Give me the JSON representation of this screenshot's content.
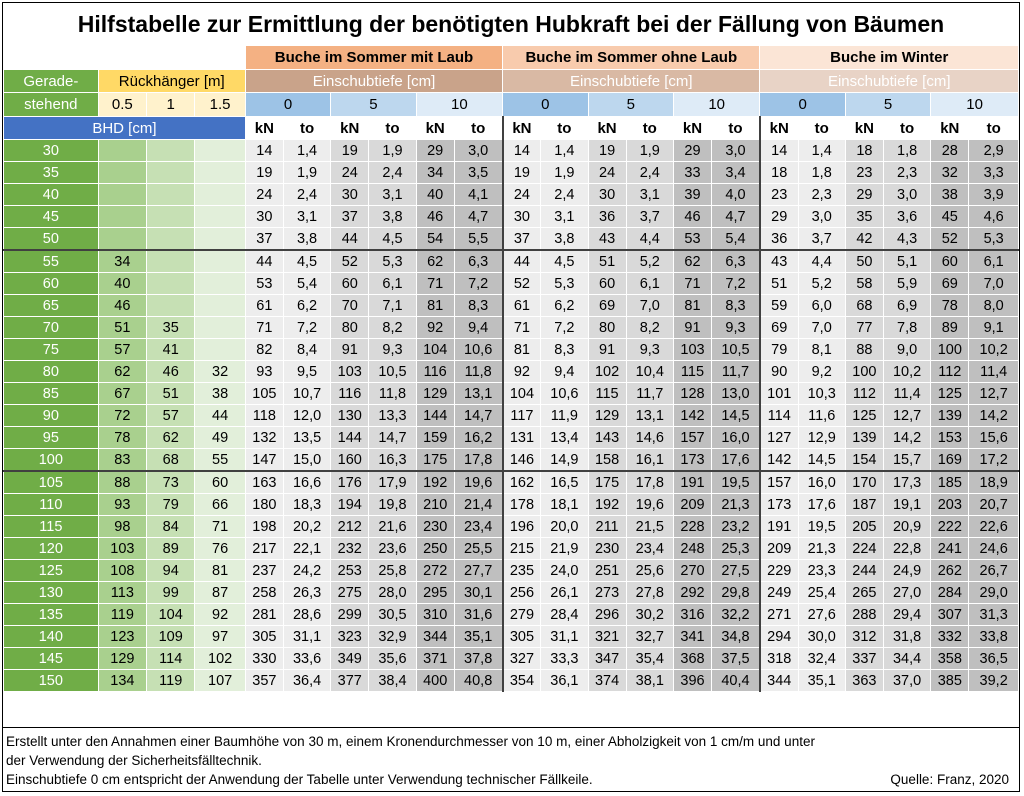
{
  "title": "Hilfstabelle zur Ermittlung der benötigten Hubkraft bei der Fällung von Bäumen",
  "groups": [
    "Buche im Sommer mit Laub",
    "Buche im Sommer ohne Laub",
    "Buche im Winter"
  ],
  "left_header": {
    "gerade_1": "Gerade-",
    "gerade_2": "stehend",
    "rueckhaenger": "Rückhänger [m]",
    "rueck_values": [
      "0.5",
      "1",
      "1.5"
    ],
    "bhd": "BHD [cm]"
  },
  "einschub_label": "Einschubtiefe [cm]",
  "einschub_values": [
    "0",
    "5",
    "10"
  ],
  "units": [
    "kN",
    "to"
  ],
  "rows": [
    [
      "30",
      "",
      "",
      "",
      "14",
      "1,4",
      "19",
      "1,9",
      "29",
      "3,0",
      "14",
      "1,4",
      "19",
      "1,9",
      "29",
      "3,0",
      "14",
      "1,4",
      "18",
      "1,8",
      "28",
      "2,9"
    ],
    [
      "35",
      "",
      "",
      "",
      "19",
      "1,9",
      "24",
      "2,4",
      "34",
      "3,5",
      "19",
      "1,9",
      "24",
      "2,4",
      "33",
      "3,4",
      "18",
      "1,8",
      "23",
      "2,3",
      "32",
      "3,3"
    ],
    [
      "40",
      "",
      "",
      "",
      "24",
      "2,4",
      "30",
      "3,1",
      "40",
      "4,1",
      "24",
      "2,4",
      "30",
      "3,1",
      "39",
      "4,0",
      "23",
      "2,3",
      "29",
      "3,0",
      "38",
      "3,9"
    ],
    [
      "45",
      "",
      "",
      "",
      "30",
      "3,1",
      "37",
      "3,8",
      "46",
      "4,7",
      "30",
      "3,1",
      "36",
      "3,7",
      "46",
      "4,7",
      "29",
      "3,0",
      "35",
      "3,6",
      "45",
      "4,6"
    ],
    [
      "50",
      "",
      "",
      "",
      "37",
      "3,8",
      "44",
      "4,5",
      "54",
      "5,5",
      "37",
      "3,8",
      "43",
      "4,4",
      "53",
      "5,4",
      "36",
      "3,7",
      "42",
      "4,3",
      "52",
      "5,3"
    ],
    [
      "55",
      "34",
      "",
      "",
      "44",
      "4,5",
      "52",
      "5,3",
      "62",
      "6,3",
      "44",
      "4,5",
      "51",
      "5,2",
      "62",
      "6,3",
      "43",
      "4,4",
      "50",
      "5,1",
      "60",
      "6,1"
    ],
    [
      "60",
      "40",
      "",
      "",
      "53",
      "5,4",
      "60",
      "6,1",
      "71",
      "7,2",
      "52",
      "5,3",
      "60",
      "6,1",
      "71",
      "7,2",
      "51",
      "5,2",
      "58",
      "5,9",
      "69",
      "7,0"
    ],
    [
      "65",
      "46",
      "",
      "",
      "61",
      "6,2",
      "70",
      "7,1",
      "81",
      "8,3",
      "61",
      "6,2",
      "69",
      "7,0",
      "81",
      "8,3",
      "59",
      "6,0",
      "68",
      "6,9",
      "78",
      "8,0"
    ],
    [
      "70",
      "51",
      "35",
      "",
      "71",
      "7,2",
      "80",
      "8,2",
      "92",
      "9,4",
      "71",
      "7,2",
      "80",
      "8,2",
      "91",
      "9,3",
      "69",
      "7,0",
      "77",
      "7,8",
      "89",
      "9,1"
    ],
    [
      "75",
      "57",
      "41",
      "",
      "82",
      "8,4",
      "91",
      "9,3",
      "104",
      "10,6",
      "81",
      "8,3",
      "91",
      "9,3",
      "103",
      "10,5",
      "79",
      "8,1",
      "88",
      "9,0",
      "100",
      "10,2"
    ],
    [
      "80",
      "62",
      "46",
      "32",
      "93",
      "9,5",
      "103",
      "10,5",
      "116",
      "11,8",
      "92",
      "9,4",
      "102",
      "10,4",
      "115",
      "11,7",
      "90",
      "9,2",
      "100",
      "10,2",
      "112",
      "11,4"
    ],
    [
      "85",
      "67",
      "51",
      "38",
      "105",
      "10,7",
      "116",
      "11,8",
      "129",
      "13,1",
      "104",
      "10,6",
      "115",
      "11,7",
      "128",
      "13,0",
      "101",
      "10,3",
      "112",
      "11,4",
      "125",
      "12,7"
    ],
    [
      "90",
      "72",
      "57",
      "44",
      "118",
      "12,0",
      "130",
      "13,3",
      "144",
      "14,7",
      "117",
      "11,9",
      "129",
      "13,1",
      "142",
      "14,5",
      "114",
      "11,6",
      "125",
      "12,7",
      "139",
      "14,2"
    ],
    [
      "95",
      "78",
      "62",
      "49",
      "132",
      "13,5",
      "144",
      "14,7",
      "159",
      "16,2",
      "131",
      "13,4",
      "143",
      "14,6",
      "157",
      "16,0",
      "127",
      "12,9",
      "139",
      "14,2",
      "153",
      "15,6"
    ],
    [
      "100",
      "83",
      "68",
      "55",
      "147",
      "15,0",
      "160",
      "16,3",
      "175",
      "17,8",
      "146",
      "14,9",
      "158",
      "16,1",
      "173",
      "17,6",
      "142",
      "14,5",
      "154",
      "15,7",
      "169",
      "17,2"
    ],
    [
      "105",
      "88",
      "73",
      "60",
      "163",
      "16,6",
      "176",
      "17,9",
      "192",
      "19,6",
      "162",
      "16,5",
      "175",
      "17,8",
      "191",
      "19,5",
      "157",
      "16,0",
      "170",
      "17,3",
      "185",
      "18,9"
    ],
    [
      "110",
      "93",
      "79",
      "66",
      "180",
      "18,3",
      "194",
      "19,8",
      "210",
      "21,4",
      "178",
      "18,1",
      "192",
      "19,6",
      "209",
      "21,3",
      "173",
      "17,6",
      "187",
      "19,1",
      "203",
      "20,7"
    ],
    [
      "115",
      "98",
      "84",
      "71",
      "198",
      "20,2",
      "212",
      "21,6",
      "230",
      "23,4",
      "196",
      "20,0",
      "211",
      "21,5",
      "228",
      "23,2",
      "191",
      "19,5",
      "205",
      "20,9",
      "222",
      "22,6"
    ],
    [
      "120",
      "103",
      "89",
      "76",
      "217",
      "22,1",
      "232",
      "23,6",
      "250",
      "25,5",
      "215",
      "21,9",
      "230",
      "23,4",
      "248",
      "25,3",
      "209",
      "21,3",
      "224",
      "22,8",
      "241",
      "24,6"
    ],
    [
      "125",
      "108",
      "94",
      "81",
      "237",
      "24,2",
      "253",
      "25,8",
      "272",
      "27,7",
      "235",
      "24,0",
      "251",
      "25,6",
      "270",
      "27,5",
      "229",
      "23,3",
      "244",
      "24,9",
      "262",
      "26,7"
    ],
    [
      "130",
      "113",
      "99",
      "87",
      "258",
      "26,3",
      "275",
      "28,0",
      "295",
      "30,1",
      "256",
      "26,1",
      "273",
      "27,8",
      "292",
      "29,8",
      "249",
      "25,4",
      "265",
      "27,0",
      "284",
      "29,0"
    ],
    [
      "135",
      "119",
      "104",
      "92",
      "281",
      "28,6",
      "299",
      "30,5",
      "310",
      "31,6",
      "279",
      "28,4",
      "296",
      "30,2",
      "316",
      "32,2",
      "271",
      "27,6",
      "288",
      "29,4",
      "307",
      "31,3"
    ],
    [
      "140",
      "123",
      "109",
      "97",
      "305",
      "31,1",
      "323",
      "32,9",
      "344",
      "35,1",
      "305",
      "31,1",
      "321",
      "32,7",
      "341",
      "34,8",
      "294",
      "30,0",
      "312",
      "31,8",
      "332",
      "33,8"
    ],
    [
      "145",
      "129",
      "114",
      "102",
      "330",
      "33,6",
      "349",
      "35,6",
      "371",
      "37,8",
      "327",
      "33,3",
      "347",
      "35,4",
      "368",
      "37,5",
      "318",
      "32,4",
      "337",
      "34,4",
      "358",
      "36,5"
    ],
    [
      "150",
      "134",
      "119",
      "107",
      "357",
      "36,4",
      "377",
      "38,4",
      "400",
      "40,8",
      "354",
      "36,1",
      "374",
      "38,1",
      "396",
      "40,4",
      "344",
      "35,1",
      "363",
      "37,0",
      "385",
      "39,2"
    ]
  ],
  "footer": {
    "line1": "Erstellt unter den Annahmen einer Baumhöhe von 30 m, einem Kronendurchmesser von 10 m, einer Abholzigkeit von 1 cm/m und unter",
    "line2": "der Verwendung der Sicherheitsfälltechnik.",
    "line3": "Einschubtiefe 0 cm entspricht der Anwendung der Tabelle unter Verwendung technischer Fällkeile.",
    "source": "Quelle: Franz, 2020"
  }
}
